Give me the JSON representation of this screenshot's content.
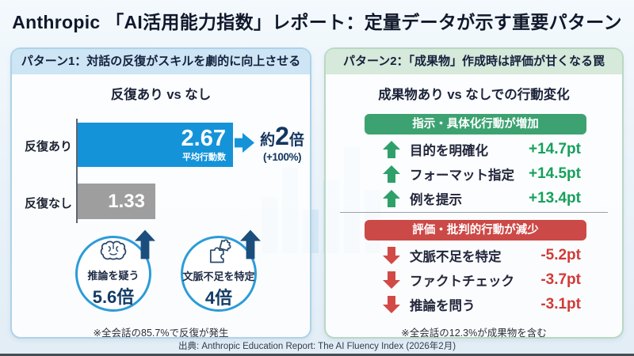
{
  "title": "Anthropic 「AI活用能力指数」レポート：定量データが示す重要パターン",
  "source": "出典: Anthropic Education Report: The AI Fluency Index (2026年2月)",
  "colors": {
    "accent_blue": "#1593d9",
    "bar_gray": "#9e9e9e",
    "navy_text": "#14365f",
    "green": "#3da271",
    "red": "#cb4946",
    "panel1_header_bg": "#cde5f4",
    "panel2_header_bg": "#d6e9da"
  },
  "pattern1": {
    "header": "パターン1：対話の反復がスキルを劇的に向上させる",
    "subtitle": "反復あり vs なし",
    "bars": [
      {
        "label": "反復あり",
        "value": "2.67",
        "unit": "平均行動数"
      },
      {
        "label": "反復なし",
        "value": "1.33"
      }
    ],
    "multiplier": {
      "approx": "約",
      "number": "2",
      "suffix": "倍",
      "sub": "(+100%)"
    },
    "circles": [
      {
        "icon": "brain-icon",
        "label": "推論を疑う",
        "value": "5.6倍"
      },
      {
        "icon": "puzzle-icon",
        "label": "文脈不足を特定",
        "value": "4倍"
      }
    ],
    "footnote": "※全会話の85.7%で反復が発生"
  },
  "pattern2": {
    "header": "パターン2：「成果物」作成時は評価が甘くなる罠",
    "subtitle": "成果物あり vs なしでの行動変化",
    "increase": {
      "banner": "指示・具体化行動が増加",
      "items": [
        {
          "label": "目的を明確化",
          "value": "+14.7pt"
        },
        {
          "label": "フォーマット指定",
          "value": "+14.5pt"
        },
        {
          "label": "例を提示",
          "value": "+13.4pt"
        }
      ]
    },
    "decrease": {
      "banner": "評価・批判的行動が減少",
      "items": [
        {
          "label": "文脈不足を特定",
          "value": "-5.2pt"
        },
        {
          "label": "ファクトチェック",
          "value": "-3.7pt"
        },
        {
          "label": "推論を問う",
          "value": "-3.1pt"
        }
      ]
    },
    "footnote": "※全会話の12.3%が成果物を含む"
  },
  "chart_data": [
    {
      "type": "bar",
      "orientation": "horizontal",
      "title": "反復あり vs なし",
      "categories": [
        "反復あり",
        "反復なし"
      ],
      "values": [
        2.67,
        1.33
      ],
      "value_unit": "平均行動数",
      "annotation": "約2倍 (+100%)",
      "bar_colors": [
        "#1593d9",
        "#9e9e9e"
      ],
      "callouts": [
        {
          "label": "推論を疑う",
          "value": "5.6倍"
        },
        {
          "label": "文脈不足を特定",
          "value": "4倍"
        }
      ],
      "footnote": "※全会話の85.7%で反復が発生"
    },
    {
      "type": "table",
      "title": "成果物あり vs なしでの行動変化",
      "groups": [
        {
          "name": "指示・具体化行動が増加",
          "direction": "up",
          "color": "#3da271",
          "rows": [
            [
              "目的を明確化",
              14.7
            ],
            [
              "フォーマット指定",
              14.5
            ],
            [
              "例を提示",
              13.4
            ]
          ],
          "unit": "pt"
        },
        {
          "name": "評価・批判的行動が減少",
          "direction": "down",
          "color": "#cb4946",
          "rows": [
            [
              "文脈不足を特定",
              -5.2
            ],
            [
              "ファクトチェック",
              -3.7
            ],
            [
              "推論を問う",
              -3.1
            ]
          ],
          "unit": "pt"
        }
      ],
      "footnote": "※全会話の12.3%が成果物を含む"
    }
  ]
}
